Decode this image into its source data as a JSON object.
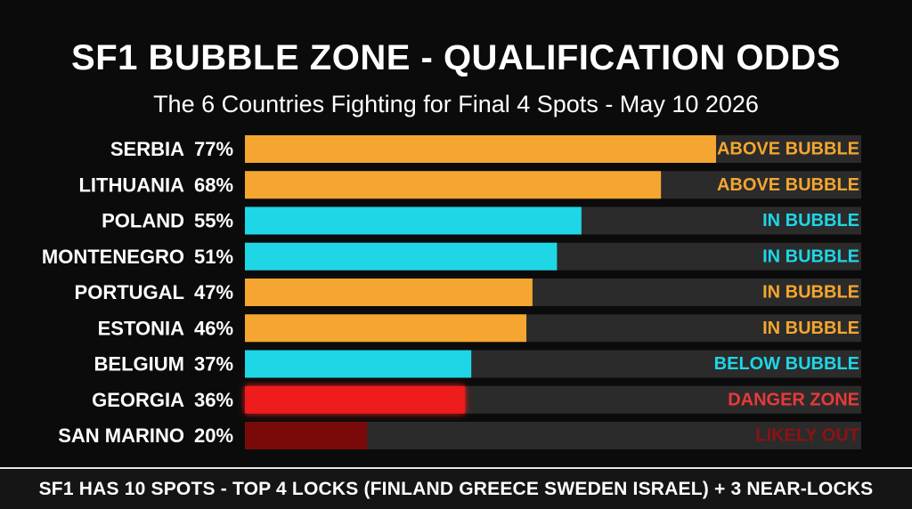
{
  "chart_data": {
    "type": "bar",
    "orientation": "horizontal",
    "title": "SF1 BUBBLE ZONE - QUALIFICATION ODDS",
    "subtitle": "The 6 Countries Fighting for Final 4 Spots - May 10 2026",
    "xlim": [
      0,
      100
    ],
    "grid": false,
    "categories": [
      "SERBIA",
      "LITHUANIA",
      "POLAND",
      "MONTENEGRO",
      "PORTUGAL",
      "ESTONIA",
      "BELGIUM",
      "GEORGIA",
      "SAN MARINO"
    ],
    "values": [
      77,
      68,
      55,
      51,
      47,
      46,
      37,
      36,
      20
    ],
    "value_labels": [
      "77%",
      "68%",
      "55%",
      "51%",
      "47%",
      "46%",
      "37%",
      "36%",
      "20%"
    ],
    "status_labels": [
      "ABOVE BUBBLE",
      "ABOVE BUBBLE",
      "IN BUBBLE",
      "IN BUBBLE",
      "IN BUBBLE",
      "IN BUBBLE",
      "BELOW BUBBLE",
      "DANGER ZONE",
      "LIKELY OUT"
    ],
    "bar_colors": [
      "#f5a630",
      "#f5a630",
      "#1fd6e6",
      "#1fd6e6",
      "#f5a630",
      "#f5a630",
      "#1fd6e6",
      "#ee1c1c",
      "#7a0a0a"
    ],
    "label_colors": [
      "#f5a630",
      "#f5a630",
      "#1fd6e6",
      "#1fd6e6",
      "#f5a630",
      "#f5a630",
      "#1fd6e6",
      "#e83a3a",
      "#8e1212"
    ],
    "track_color": "#2b2b2b"
  },
  "footer": {
    "text": "SF1 HAS 10 SPOTS - TOP 4 LOCKS (FINLAND GREECE SWEDEN ISRAEL) + 3 NEAR-LOCKS"
  }
}
